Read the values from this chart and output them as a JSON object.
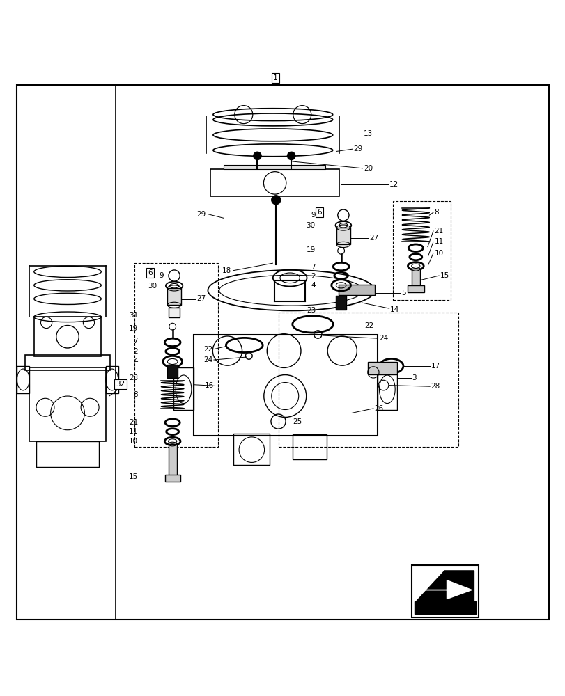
{
  "fig_width": 8.12,
  "fig_height": 10.0,
  "dpi": 100,
  "bg_color": "#ffffff",
  "line_color": "#000000"
}
